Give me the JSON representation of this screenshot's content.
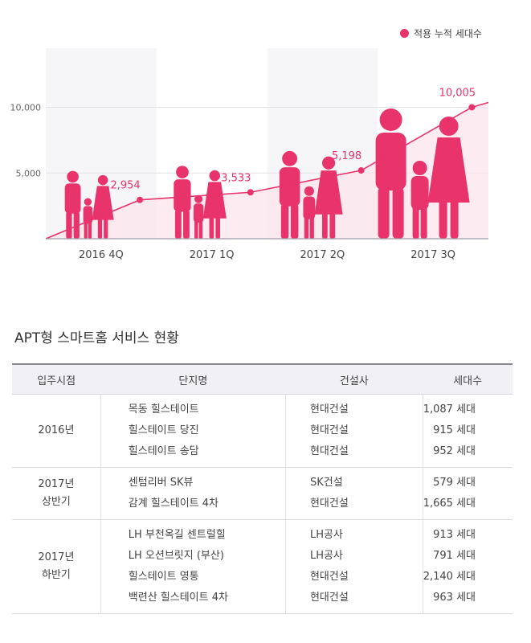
{
  "legend": {
    "label": "적용 누적 세대수",
    "color": "#e8336b"
  },
  "chart_data": {
    "type": "area",
    "categories": [
      "2016 4Q",
      "2017 1Q",
      "2017 2Q",
      "2017 3Q"
    ],
    "series": [
      {
        "name": "적용 누적 세대수",
        "values": [
          2954,
          3533,
          5198,
          10005
        ]
      }
    ],
    "value_labels": [
      "2,954",
      "3,533",
      "5,198",
      "10,005"
    ],
    "yticks": [
      "5,000",
      "10,000"
    ],
    "ytick_values": [
      5000,
      10000
    ],
    "ylim": [
      0,
      14500
    ],
    "xlabel": "",
    "ylabel": "",
    "line_color": "#e8336b",
    "fill_color": "#fbe4ec",
    "legend_position": "top-right"
  },
  "table": {
    "title": "APT형 스마트홈 서비스 현황",
    "headers": [
      "입주시점",
      "단지명",
      "건설사",
      "세대수"
    ],
    "groups": [
      {
        "period": "2016년",
        "rows": [
          {
            "name": "목동 힐스테이트",
            "builder": "현대건설",
            "count": "1,087 세대"
          },
          {
            "name": "힐스테이트 당진",
            "builder": "현대건설",
            "count": "915 세대"
          },
          {
            "name": "힐스테이트 송담",
            "builder": "현대건설",
            "count": "952 세대"
          }
        ]
      },
      {
        "period": "2017년\n상반기",
        "rows": [
          {
            "name": "센텀리버 SK뷰",
            "builder": "SK건설",
            "count": "579 세대"
          },
          {
            "name": "감계 힐스테이트 4차",
            "builder": "현대건설",
            "count": "1,665 세대"
          }
        ]
      },
      {
        "period": "2017년\n하반기",
        "rows": [
          {
            "name": "LH 부천옥길 센트럴힐",
            "builder": "LH공사",
            "count": "913 세대"
          },
          {
            "name": "LH 오션브릿지 (부산)",
            "builder": "LH공사",
            "count": "791 세대"
          },
          {
            "name": "힐스테이트 영통",
            "builder": "현대건설",
            "count": "2,140 세대"
          },
          {
            "name": "백련산 힐스테이트 4차",
            "builder": "현대건설",
            "count": "963 세대"
          }
        ]
      }
    ]
  }
}
